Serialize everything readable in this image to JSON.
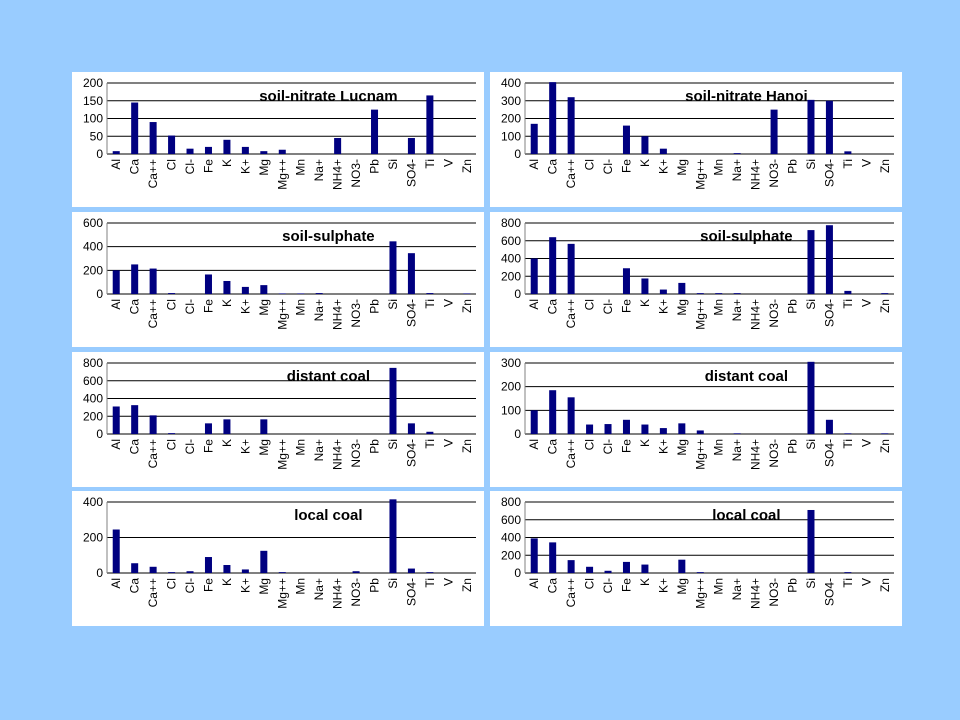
{
  "colors": {
    "background": "#99ccff",
    "panel": "#ffffff",
    "bar": "#000080",
    "gridline": "#000000"
  },
  "chart_data": [
    {
      "type": "bar",
      "title": "soil-nitrate Lucnam",
      "categories": [
        "Al",
        "Ca",
        "Ca++",
        "Cl",
        "Cl-",
        "Fe",
        "K",
        "K+",
        "Mg",
        "Mg++",
        "Mn",
        "Na+",
        "NH4+",
        "NO3-",
        "Pb",
        "Si",
        "SO4-",
        "Ti",
        "V",
        "Zn"
      ],
      "values": [
        8,
        145,
        90,
        52,
        15,
        20,
        40,
        20,
        8,
        12,
        0,
        0,
        45,
        0,
        125,
        0,
        45,
        165,
        0,
        0
      ],
      "ylim": [
        0,
        200
      ],
      "yticks": [
        0,
        50,
        100,
        150,
        200
      ],
      "grid": true
    },
    {
      "type": "bar",
      "title": "soil-nitrate Hanoi",
      "categories": [
        "Al",
        "Ca",
        "Ca++",
        "Cl",
        "Cl-",
        "Fe",
        "K",
        "K+",
        "Mg",
        "Mg++",
        "Mn",
        "Na+",
        "NH4+",
        "NO3-",
        "Pb",
        "Si",
        "SO4-",
        "Ti",
        "V",
        "Zn"
      ],
      "values": [
        170,
        405,
        320,
        0,
        0,
        160,
        100,
        30,
        0,
        0,
        0,
        5,
        0,
        250,
        0,
        305,
        300,
        15,
        0,
        0
      ],
      "ylim": [
        0,
        400
      ],
      "yticks": [
        0,
        100,
        200,
        300,
        400
      ],
      "grid": true
    },
    {
      "type": "bar",
      "title": "soil-sulphate",
      "categories": [
        "Al",
        "Ca",
        "Ca++",
        "Cl",
        "Cl-",
        "Fe",
        "K",
        "K+",
        "Mg",
        "Mg++",
        "Mn",
        "Na+",
        "NH4+",
        "NO3-",
        "Pb",
        "Si",
        "SO4-",
        "Ti",
        "V",
        "Zn"
      ],
      "values": [
        200,
        250,
        215,
        8,
        0,
        165,
        110,
        60,
        75,
        5,
        5,
        8,
        0,
        0,
        0,
        445,
        345,
        8,
        0,
        5
      ],
      "ylim": [
        0,
        600
      ],
      "yticks": [
        0,
        200,
        400,
        600
      ],
      "grid": true
    },
    {
      "type": "bar",
      "title": "soil-sulphate",
      "categories": [
        "Al",
        "Ca",
        "Ca++",
        "Cl",
        "Cl-",
        "Fe",
        "K",
        "K+",
        "Mg",
        "Mg++",
        "Mn",
        "Na+",
        "NH4+",
        "NO3-",
        "Pb",
        "Si",
        "SO4-",
        "Ti",
        "V",
        "Zn"
      ],
      "values": [
        400,
        640,
        565,
        0,
        0,
        290,
        175,
        50,
        125,
        10,
        10,
        10,
        0,
        0,
        0,
        720,
        775,
        35,
        0,
        10
      ],
      "ylim": [
        0,
        800
      ],
      "yticks": [
        0,
        200,
        400,
        600,
        800
      ],
      "grid": true
    },
    {
      "type": "bar",
      "title": "distant coal",
      "categories": [
        "Al",
        "Ca",
        "Ca++",
        "Cl",
        "Cl-",
        "Fe",
        "K",
        "K+",
        "Mg",
        "Mg++",
        "Mn",
        "Na+",
        "NH4+",
        "NO3-",
        "Pb",
        "Si",
        "SO4-",
        "Ti",
        "V",
        "Zn"
      ],
      "values": [
        310,
        325,
        210,
        10,
        0,
        120,
        165,
        0,
        165,
        0,
        0,
        0,
        0,
        0,
        0,
        745,
        120,
        25,
        0,
        0
      ],
      "ylim": [
        0,
        800
      ],
      "yticks": [
        0,
        200,
        400,
        600,
        800
      ],
      "grid": true
    },
    {
      "type": "bar",
      "title": "distant coal",
      "categories": [
        "Al",
        "Ca",
        "Ca++",
        "Cl",
        "Cl-",
        "Fe",
        "K",
        "K+",
        "Mg",
        "Mg++",
        "Mn",
        "Na+",
        "NH4+",
        "NO3-",
        "Pb",
        "Si",
        "SO4-",
        "Ti",
        "V",
        "Zn"
      ],
      "values": [
        100,
        185,
        155,
        40,
        42,
        60,
        40,
        25,
        45,
        15,
        0,
        3,
        0,
        0,
        0,
        305,
        60,
        3,
        0,
        3
      ],
      "ylim": [
        0,
        300
      ],
      "yticks": [
        0,
        100,
        200,
        300
      ],
      "grid": true
    },
    {
      "type": "bar",
      "title": "local coal",
      "categories": [
        "Al",
        "Ca",
        "Ca++",
        "Cl",
        "Cl-",
        "Fe",
        "K",
        "K+",
        "Mg",
        "Mg++",
        "Mn",
        "Na+",
        "NH4+",
        "NO3-",
        "Pb",
        "Si",
        "SO4-",
        "Ti",
        "V",
        "Zn"
      ],
      "values": [
        245,
        55,
        35,
        5,
        10,
        90,
        45,
        20,
        125,
        5,
        0,
        0,
        0,
        10,
        0,
        415,
        25,
        5,
        0,
        0
      ],
      "ylim": [
        0,
        400
      ],
      "yticks": [
        0,
        200,
        400
      ],
      "grid": true
    },
    {
      "type": "bar",
      "title": "local coal",
      "categories": [
        "Al",
        "Ca",
        "Ca++",
        "Cl",
        "Cl-",
        "Fe",
        "K",
        "K+",
        "Mg",
        "Mg++",
        "Mn",
        "Na+",
        "NH4+",
        "NO3-",
        "Pb",
        "Si",
        "SO4-",
        "Ti",
        "V",
        "Zn"
      ],
      "values": [
        390,
        345,
        145,
        70,
        25,
        125,
        95,
        0,
        150,
        10,
        0,
        0,
        0,
        0,
        0,
        710,
        0,
        10,
        0,
        0
      ],
      "ylim": [
        0,
        800
      ],
      "yticks": [
        0,
        200,
        400,
        600,
        800
      ],
      "grid": true
    }
  ]
}
